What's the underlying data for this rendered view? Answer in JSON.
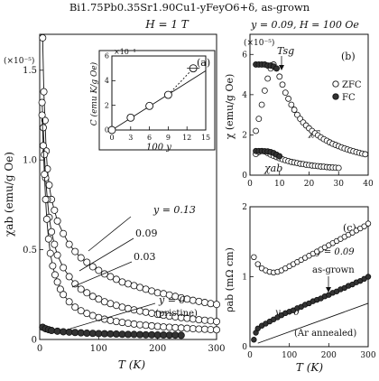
{
  "figure": {
    "title": "Bi1.75Pb0.35Sr1.90Cu1-yFeyO6+δ, as-grown"
  },
  "chart_data": [
    {
      "id": "main",
      "type": "scatter",
      "panel_label": "",
      "header": "H = 1 T",
      "xlabel": "T (K)",
      "ylabel": "χab (emu/g Oe)",
      "multiplier": "(×10⁻⁵)",
      "xlim": [
        0,
        300
      ],
      "ylim": [
        0,
        1.7
      ],
      "xticks": [
        "0",
        "100",
        "200",
        "300"
      ],
      "yticks": [
        "0",
        "0.5",
        "1.0",
        "1.5"
      ],
      "series": [
        {
          "name": "y = 0.13",
          "label": "y = 0.13",
          "style": "open-line",
          "x": [
            5,
            7,
            9,
            11,
            13,
            16,
            20,
            25,
            30,
            40,
            50,
            60,
            70,
            80,
            90,
            100,
            110,
            120,
            130,
            140,
            150,
            160,
            170,
            180,
            190,
            200,
            210,
            220,
            230,
            240,
            250,
            260,
            270,
            280,
            290,
            300
          ],
          "y": [
            1.68,
            1.38,
            1.22,
            1.05,
            0.95,
            0.86,
            0.78,
            0.72,
            0.66,
            0.59,
            0.53,
            0.49,
            0.455,
            0.43,
            0.405,
            0.385,
            0.365,
            0.35,
            0.335,
            0.32,
            0.31,
            0.3,
            0.29,
            0.28,
            0.27,
            0.26,
            0.255,
            0.248,
            0.24,
            0.232,
            0.225,
            0.218,
            0.212,
            0.206,
            0.2,
            0.195
          ]
        },
        {
          "name": "y = 0.09",
          "label": "0.09",
          "style": "open-line",
          "x": [
            4,
            6,
            8,
            10,
            13,
            16,
            20,
            25,
            30,
            40,
            50,
            60,
            70,
            80,
            90,
            100,
            110,
            120,
            130,
            140,
            150,
            160,
            170,
            180,
            190,
            200,
            210,
            220,
            230,
            240,
            250,
            260,
            270,
            280,
            290,
            300
          ],
          "y": [
            1.32,
            1.18,
            1.03,
            0.9,
            0.78,
            0.68,
            0.6,
            0.53,
            0.47,
            0.4,
            0.35,
            0.31,
            0.28,
            0.26,
            0.24,
            0.225,
            0.21,
            0.2,
            0.19,
            0.18,
            0.172,
            0.165,
            0.158,
            0.152,
            0.146,
            0.14,
            0.135,
            0.13,
            0.126,
            0.122,
            0.118,
            0.114,
            0.11,
            0.107,
            0.104,
            0.1
          ]
        },
        {
          "name": "y = 0.03",
          "label": "0.03",
          "style": "open-line",
          "x": [
            4,
            6,
            8,
            10,
            12,
            15,
            18,
            22,
            26,
            30,
            35,
            40,
            50,
            60,
            70,
            80,
            90,
            100,
            110,
            120,
            130,
            140,
            150,
            160,
            170,
            180,
            190,
            200,
            210,
            220,
            230,
            240,
            250,
            260,
            270,
            280,
            290,
            300
          ],
          "y": [
            1.25,
            1.08,
            0.92,
            0.78,
            0.67,
            0.56,
            0.48,
            0.41,
            0.36,
            0.32,
            0.28,
            0.25,
            0.21,
            0.18,
            0.16,
            0.145,
            0.133,
            0.122,
            0.113,
            0.106,
            0.1,
            0.095,
            0.09,
            0.086,
            0.082,
            0.079,
            0.076,
            0.073,
            0.07,
            0.068,
            0.066,
            0.064,
            0.062,
            0.06,
            0.058,
            0.057,
            0.055,
            0.054
          ]
        },
        {
          "name": "y = 0 (pristine)",
          "label": "y = 0",
          "sublabel": "(pristine)",
          "style": "filled",
          "x": [
            5,
            10,
            15,
            20,
            30,
            40,
            50,
            60,
            70,
            80,
            90,
            100,
            110,
            120,
            130,
            140,
            150,
            160,
            170,
            180,
            190,
            200,
            210,
            220,
            230,
            240
          ],
          "y": [
            0.068,
            0.06,
            0.055,
            0.05,
            0.046,
            0.043,
            0.041,
            0.039,
            0.037,
            0.035,
            0.034,
            0.033,
            0.032,
            0.031,
            0.03,
            0.029,
            0.028,
            0.028,
            0.027,
            0.026,
            0.026,
            0.025,
            0.025,
            0.024,
            0.024,
            0.023
          ]
        }
      ]
    },
    {
      "id": "inset",
      "type": "scatter",
      "panel_label": "(a)",
      "xlabel": "100 y",
      "ylabel": "C (emu K/g Oe)",
      "multiplier": "×10⁻⁴",
      "xlim": [
        0,
        15
      ],
      "ylim": [
        0,
        6
      ],
      "xticks": [
        "0",
        "3",
        "6",
        "9",
        "12",
        "15"
      ],
      "yticks": [
        "0",
        "2",
        "4",
        "6"
      ],
      "points": [
        {
          "x": 0,
          "y": 0
        },
        {
          "x": 3,
          "y": 1.0
        },
        {
          "x": 6,
          "y": 1.95
        },
        {
          "x": 9,
          "y": 2.85
        },
        {
          "x": 13,
          "y": 5.0
        }
      ],
      "fit_line": {
        "x": [
          0,
          15
        ],
        "y": [
          0,
          4.8
        ]
      }
    },
    {
      "id": "b",
      "type": "scatter",
      "panel_label": "(b)",
      "header": "y = 0.09, H = 100 Oe",
      "xlabel": "",
      "ylabel": "χ (emu/g Oe)",
      "multiplier": "(×10⁻⁵)",
      "xlim": [
        0,
        40
      ],
      "ylim": [
        0,
        7
      ],
      "xticks": [
        "0",
        "10",
        "20",
        "30",
        "40"
      ],
      "yticks": [
        "0",
        "2",
        "4",
        "6"
      ],
      "annotation": "Tsg",
      "legend": [
        "ZFC",
        "FC"
      ],
      "curve_labels": [
        "χc",
        "χab"
      ],
      "series": [
        {
          "name": "ZFC χc",
          "style": "open",
          "x": [
            2,
            3,
            4,
            5,
            6,
            7,
            8,
            9,
            10,
            11,
            12,
            13,
            14,
            15,
            16,
            17,
            18,
            19,
            20,
            21,
            22,
            23,
            24,
            25,
            26,
            27,
            28,
            29,
            30,
            31,
            32,
            33,
            34,
            35,
            36,
            37,
            38,
            39
          ],
          "y": [
            2.2,
            2.8,
            3.5,
            4.2,
            4.8,
            5.3,
            5.5,
            5.3,
            4.9,
            4.5,
            4.1,
            3.8,
            3.5,
            3.25,
            3.0,
            2.8,
            2.62,
            2.47,
            2.33,
            2.2,
            2.08,
            1.98,
            1.88,
            1.79,
            1.71,
            1.63,
            1.56,
            1.5,
            1.44,
            1.38,
            1.33,
            1.28,
            1.23,
            1.19,
            1.15,
            1.11,
            1.07,
            1.04
          ]
        },
        {
          "name": "FC χc",
          "style": "filled",
          "x": [
            2,
            3,
            4,
            5,
            6,
            7,
            8,
            9
          ],
          "y": [
            5.5,
            5.5,
            5.5,
            5.5,
            5.45,
            5.45,
            5.4,
            5.3
          ]
        },
        {
          "name": "ZFC χab",
          "style": "open",
          "x": [
            2,
            3,
            4,
            5,
            6,
            7,
            8,
            9,
            10,
            11,
            12,
            13,
            14,
            15,
            16,
            17,
            18,
            19,
            20,
            21,
            22,
            23,
            24,
            25,
            26,
            27,
            28,
            29,
            30
          ],
          "y": [
            1.05,
            1.15,
            1.2,
            1.18,
            1.1,
            1.02,
            0.96,
            0.9,
            0.84,
            0.79,
            0.74,
            0.7,
            0.66,
            0.63,
            0.6,
            0.57,
            0.55,
            0.52,
            0.5,
            0.48,
            0.46,
            0.45,
            0.43,
            0.42,
            0.4,
            0.39,
            0.38,
            0.37,
            0.36
          ]
        },
        {
          "name": "FC χab",
          "style": "filled",
          "x": [
            2,
            3,
            4,
            5,
            6,
            7,
            8,
            9,
            10
          ],
          "y": [
            1.2,
            1.2,
            1.2,
            1.19,
            1.18,
            1.15,
            1.1,
            1.02,
            0.94
          ]
        }
      ]
    },
    {
      "id": "c",
      "type": "scatter",
      "panel_label": "(c)",
      "xlabel": "T (K)",
      "ylabel": "ρab (mΩ cm)",
      "xlim": [
        0,
        300
      ],
      "ylim": [
        0,
        2
      ],
      "xticks": [
        "0",
        "100",
        "200",
        "300"
      ],
      "yticks": [
        "0",
        "1",
        "2"
      ],
      "annotations": [
        "as-grown",
        "(Ar annealed)"
      ],
      "series": [
        {
          "name": "y = 0.09",
          "label": "y = 0.09",
          "style": "open",
          "x": [
            10,
            20,
            30,
            40,
            50,
            60,
            70,
            80,
            90,
            100,
            110,
            120,
            130,
            140,
            150,
            160,
            170,
            180,
            190,
            200,
            210,
            220,
            230,
            240,
            250,
            260,
            270,
            280,
            290,
            300
          ],
          "y": [
            1.28,
            1.18,
            1.12,
            1.09,
            1.07,
            1.06,
            1.07,
            1.09,
            1.12,
            1.15,
            1.18,
            1.21,
            1.24,
            1.27,
            1.3,
            1.33,
            1.36,
            1.39,
            1.42,
            1.45,
            1.48,
            1.51,
            1.54,
            1.57,
            1.6,
            1.63,
            1.66,
            1.69,
            1.72,
            1.76
          ]
        },
        {
          "name": "y = 0",
          "label": "y = 0",
          "style": "filled",
          "x": [
            10,
            15,
            20,
            30,
            40,
            50,
            60,
            70,
            80,
            90,
            100,
            110,
            120,
            130,
            140,
            150,
            160,
            170,
            180,
            190,
            200,
            210,
            220,
            230,
            240,
            250,
            260,
            270,
            280,
            290,
            300
          ],
          "y": [
            0.1,
            0.2,
            0.26,
            0.3,
            0.33,
            0.36,
            0.39,
            0.42,
            0.45,
            0.48,
            0.5,
            0.52,
            0.55,
            0.57,
            0.6,
            0.62,
            0.65,
            0.67,
            0.69,
            0.72,
            0.74,
            0.77,
            0.79,
            0.82,
            0.84,
            0.87,
            0.89,
            0.92,
            0.94,
            0.97,
            1.0
          ]
        },
        {
          "name": "Ar annealed",
          "style": "line",
          "x": [
            20,
            300
          ],
          "y": [
            0.05,
            0.62
          ]
        }
      ]
    }
  ]
}
